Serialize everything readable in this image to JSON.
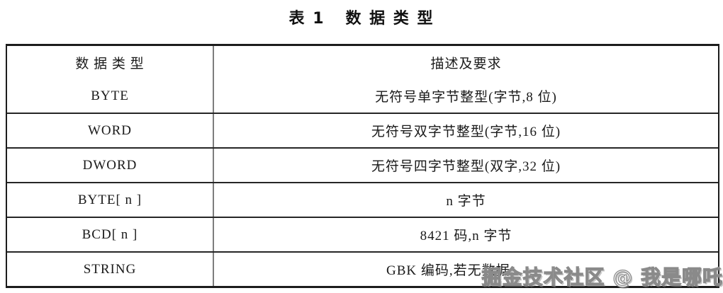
{
  "page": {
    "background": "#ffffff"
  },
  "title": "表 1   数 据 类 型",
  "table": {
    "headers": {
      "type": "数 据 类 型",
      "desc": "描述及要求"
    },
    "rows": [
      {
        "type": "BYTE",
        "desc": "无符号单字节整型(字节,8 位)"
      },
      {
        "type": "WORD",
        "desc": "无符号双字节整型(字节,16 位)"
      },
      {
        "type": "DWORD",
        "desc": "无符号四字节整型(双字,32 位)"
      },
      {
        "type": "BYTE[ n ]",
        "desc": "n 字节"
      },
      {
        "type": "BCD[ n ]",
        "desc": "8421 码,n 字节"
      },
      {
        "type": "STRING",
        "desc": "GBK 编码,若无数据",
        "desc_align": "offset"
      }
    ],
    "colors": {
      "outer_border": "#1c1c1c",
      "row_separator": "#262626",
      "column_divider": "#7d7d7d",
      "text": "#1a1a1a"
    }
  },
  "watermark": {
    "text": "掘金技术社区 @ 我是哪吒",
    "outline_color": "#8a8a8a",
    "fill_color": "#f2f2f2"
  }
}
